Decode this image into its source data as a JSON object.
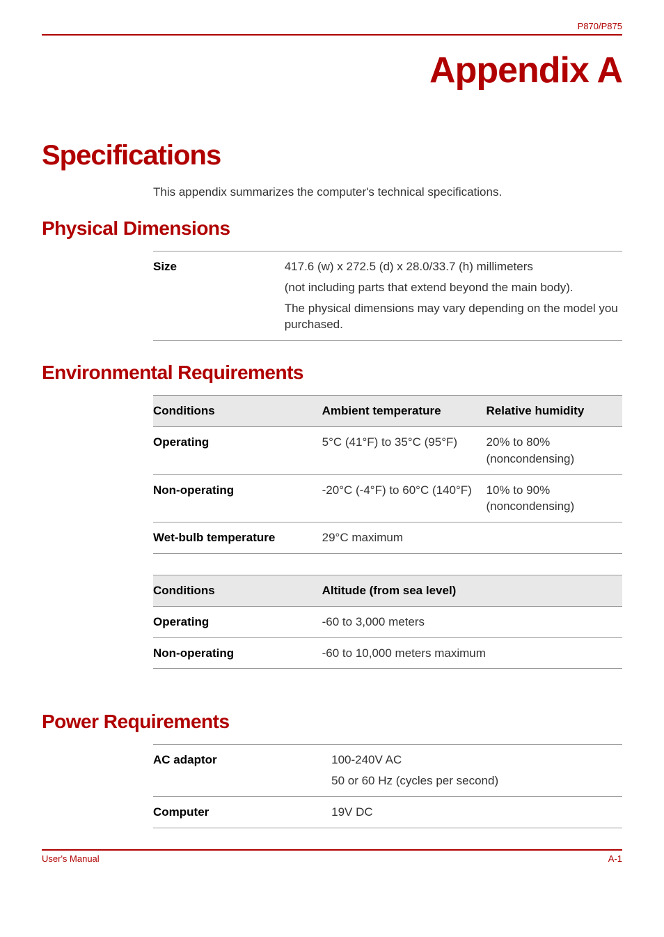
{
  "header": {
    "model": "P870/P875"
  },
  "appendix": {
    "label": "Appendix A"
  },
  "main_title": "Specifications",
  "intro": "This appendix summarizes the computer's technical specifications.",
  "physical": {
    "title": "Physical Dimensions",
    "size_label": "Size",
    "size_line1": "417.6 (w) x 272.5 (d) x 28.0/33.7 (h) millimeters",
    "size_line2": "(not including parts that extend beyond the main body).",
    "size_line3": "The physical dimensions may vary depending on the model you purchased."
  },
  "environmental": {
    "title": "Environmental Requirements",
    "header_conditions": "Conditions",
    "header_ambient": "Ambient temperature",
    "header_humidity": "Relative humidity",
    "operating_label": "Operating",
    "operating_temp": "5°C (41°F) to 35°C (95°F)",
    "operating_humidity": "20% to 80% (noncondensing)",
    "nonoperating_label": "Non-operating",
    "nonoperating_temp": "-20°C (-4°F) to 60°C (140°F)",
    "nonoperating_humidity": "10% to 90% (noncondensing)",
    "wetbulb_label": "Wet-bulb temperature",
    "wetbulb_value": "29°C maximum",
    "altitude_header_conditions": "Conditions",
    "altitude_header": "Altitude (from sea level)",
    "altitude_operating_label": "Operating",
    "altitude_operating_value": "-60 to 3,000 meters",
    "altitude_nonoperating_label": "Non-operating",
    "altitude_nonoperating_value": "-60 to 10,000 meters maximum"
  },
  "power": {
    "title": "Power Requirements",
    "ac_label": "AC adaptor",
    "ac_line1": "100-240V AC",
    "ac_line2": "50 or 60 Hz (cycles per second)",
    "computer_label": "Computer",
    "computer_value": "19V DC"
  },
  "footer": {
    "left": "User's Manual",
    "right": "A-1"
  },
  "style": {
    "accent_color": "#b00000",
    "bg_color": "#ffffff",
    "header_row_bg": "#e8e8e8",
    "border_color": "#999999",
    "text_color": "#333333"
  }
}
